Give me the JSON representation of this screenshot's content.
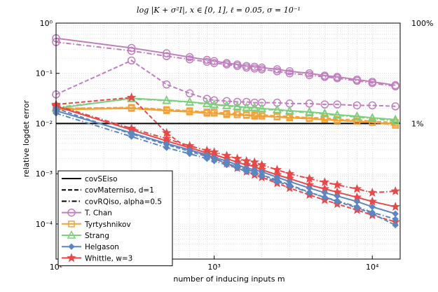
{
  "chart_data": {
    "type": "line",
    "title": "log |K + σ²I|, x ∈ [0, 1], ℓ = 0.05, σ = 10⁻¹",
    "xlabel": "number of inducing inputs m",
    "ylabel": "relative logdet error",
    "xscale": "log",
    "yscale": "log",
    "xlim": [
      100,
      15000
    ],
    "ylim": [
      2e-05,
      1
    ],
    "grid": true,
    "legend_position": "bottom-left",
    "x_ticks": [
      {
        "v": 100,
        "t": "10²"
      },
      {
        "v": 1000,
        "t": "10³"
      },
      {
        "v": 10000,
        "t": "10⁴"
      }
    ],
    "y_ticks": [
      {
        "v": 1,
        "t": "10⁰"
      },
      {
        "v": 0.1,
        "t": "10⁻¹"
      },
      {
        "v": 0.01,
        "t": "10⁻²"
      },
      {
        "v": 0.001,
        "t": "10⁻³"
      },
      {
        "v": 0.0001,
        "t": "10⁻⁴"
      }
    ],
    "right_labels": [
      {
        "v": 1,
        "t": "100%"
      },
      {
        "v": 0.01,
        "t": "1%"
      }
    ],
    "reference_line": 0.01,
    "legend": [
      {
        "label": "covSEiso",
        "style": "solid",
        "color": "#000000"
      },
      {
        "label": "covMaterniso, d=1",
        "style": "dashed",
        "color": "#000000"
      },
      {
        "label": "covRQiso, alpha=0.5",
        "style": "dashdot",
        "color": "#000000"
      },
      {
        "label": "T. Chan",
        "style": "solid",
        "color": "#bf7fbf",
        "marker": "circle"
      },
      {
        "label": "Tyrtyshnikov",
        "style": "solid",
        "color": "#f5a033",
        "marker": "square"
      },
      {
        "label": "Strang",
        "style": "solid",
        "color": "#7fce7f",
        "marker": "triangle"
      },
      {
        "label": "Helgason",
        "style": "solid",
        "color": "#5b86c1",
        "marker": "diamond"
      },
      {
        "label": "Whittle, w=3",
        "style": "solid",
        "color": "#e84848",
        "marker": "star"
      }
    ],
    "x": [
      100,
      300,
      500,
      700,
      900,
      1000,
      1200,
      1400,
      1600,
      1800,
      2000,
      2500,
      3000,
      4000,
      5000,
      6000,
      8000,
      10000,
      14000
    ],
    "series": [
      {
        "name": "T. Chan",
        "kernel": "covSEiso",
        "color": "#bf7fbf",
        "marker": "circle",
        "style": "solid",
        "values": [
          0.5,
          0.32,
          0.25,
          0.21,
          0.185,
          0.175,
          0.16,
          0.15,
          0.14,
          0.135,
          0.13,
          0.12,
          0.11,
          0.1,
          0.09,
          0.085,
          0.075,
          0.068,
          0.058
        ]
      },
      {
        "name": "T. Chan",
        "kernel": "covRQiso",
        "color": "#bf7fbf",
        "marker": "circle",
        "style": "dashdot",
        "values": [
          0.42,
          0.28,
          0.22,
          0.19,
          0.17,
          0.16,
          0.15,
          0.14,
          0.13,
          0.125,
          0.12,
          0.11,
          0.1,
          0.092,
          0.085,
          0.08,
          0.071,
          0.064,
          0.055
        ]
      },
      {
        "name": "T. Chan",
        "kernel": "covMaterniso",
        "color": "#bf7fbf",
        "marker": "circle",
        "style": "dashed",
        "values": [
          0.038,
          0.18,
          0.06,
          0.04,
          0.031,
          0.029,
          0.028,
          0.027,
          0.027,
          0.026,
          0.026,
          0.026,
          0.025,
          0.025,
          0.024,
          0.024,
          0.023,
          0.023,
          0.022
        ]
      },
      {
        "name": "Tyrtyshnikov",
        "kernel": "covMaterniso",
        "color": "#f5a033",
        "marker": "square",
        "style": "dashed",
        "values": [
          0.02,
          0.021,
          0.019,
          0.018,
          0.017,
          0.017,
          0.016,
          0.016,
          0.015,
          0.015,
          0.015,
          0.014,
          0.014,
          0.013,
          0.013,
          0.012,
          0.012,
          0.011,
          0.0105
        ]
      },
      {
        "name": "Tyrtyshnikov",
        "kernel": "covSEiso",
        "color": "#f5a033",
        "marker": "square",
        "style": "solid",
        "values": [
          0.019,
          0.02,
          0.018,
          0.017,
          0.016,
          0.016,
          0.015,
          0.015,
          0.0145,
          0.014,
          0.014,
          0.0135,
          0.013,
          0.0125,
          0.012,
          0.0115,
          0.011,
          0.0105,
          0.0098
        ]
      },
      {
        "name": "Tyrtyshnikov",
        "kernel": "covRQiso",
        "color": "#f5a033",
        "marker": "square",
        "style": "dashdot",
        "values": [
          0.02,
          0.0205,
          0.0185,
          0.0175,
          0.0165,
          0.0162,
          0.0155,
          0.015,
          0.0148,
          0.0145,
          0.0142,
          0.0137,
          0.0133,
          0.0127,
          0.0122,
          0.0118,
          0.0112,
          0.0106,
          0.0092
        ]
      },
      {
        "name": "Strang",
        "kernel": "covSEiso",
        "color": "#7fce7f",
        "marker": "triangle",
        "style": "solid",
        "values": [
          0.02,
          0.032,
          0.029,
          0.027,
          0.025,
          0.024,
          0.023,
          0.022,
          0.021,
          0.021,
          0.02,
          0.019,
          0.018,
          0.017,
          0.016,
          0.015,
          0.014,
          0.013,
          0.012
        ]
      },
      {
        "name": "Strang",
        "kernel": "covRQiso",
        "color": "#7fce7f",
        "marker": "triangle",
        "style": "dashdot",
        "values": [
          0.021,
          0.031,
          0.0285,
          0.0265,
          0.0245,
          0.0235,
          0.0225,
          0.0215,
          0.0205,
          0.0205,
          0.0195,
          0.0185,
          0.0175,
          0.0165,
          0.0155,
          0.0145,
          0.0135,
          0.0126,
          0.0112
        ]
      },
      {
        "name": "Whittle, w=3",
        "kernel": "covSEiso",
        "color": "#e84848",
        "marker": "star",
        "style": "solid",
        "values": [
          0.022,
          0.0075,
          0.0045,
          0.0033,
          0.0026,
          0.0024,
          0.002,
          0.0017,
          0.0015,
          0.0014,
          0.0012,
          0.00095,
          0.0008,
          0.0006,
          0.0005,
          0.00043,
          0.00034,
          0.00028,
          0.00022
        ]
      },
      {
        "name": "Whittle, w=3",
        "kernel": "covRQiso",
        "color": "#e84848",
        "marker": "star",
        "style": "dashdot",
        "values": [
          0.023,
          0.008,
          0.005,
          0.0036,
          0.0029,
          0.0027,
          0.0023,
          0.002,
          0.0018,
          0.0017,
          0.0015,
          0.0012,
          0.001,
          0.0008,
          0.00068,
          0.0006,
          0.0005,
          0.00042,
          0.00045
        ]
      },
      {
        "name": "Whittle, w=3",
        "kernel": "covMaterniso",
        "color": "#e84848",
        "marker": "star",
        "style": "dashed",
        "values": [
          0.024,
          0.033,
          0.0065,
          0.003,
          0.0023,
          0.002,
          0.0016,
          0.0013,
          0.0011,
          0.00095,
          0.00085,
          0.00065,
          0.00052,
          0.00038,
          0.0003,
          0.00025,
          0.00019,
          0.00015,
          0.00011
        ]
      },
      {
        "name": "Helgason",
        "kernel": "covSEiso",
        "color": "#5b86c1",
        "marker": "diamond",
        "style": "solid",
        "values": [
          0.018,
          0.0065,
          0.004,
          0.003,
          0.0024,
          0.0021,
          0.0018,
          0.0015,
          0.0013,
          0.0012,
          0.0011,
          0.00085,
          0.0007,
          0.00052,
          0.00042,
          0.00036,
          0.00028,
          0.00022,
          0.00016
        ]
      },
      {
        "name": "Helgason",
        "kernel": "covRQiso",
        "color": "#5b86c1",
        "marker": "diamond",
        "style": "dashdot",
        "values": [
          0.016,
          0.0055,
          0.0033,
          0.0025,
          0.002,
          0.0018,
          0.0015,
          0.0013,
          0.0011,
          0.001,
          0.0009,
          0.0007,
          0.00058,
          0.00042,
          0.00034,
          0.00029,
          0.00022,
          0.00017,
          0.000125
        ]
      },
      {
        "name": "Helgason",
        "kernel": "covMaterniso",
        "color": "#5b86c1",
        "marker": "diamond",
        "style": "dashed",
        "values": [
          0.02,
          0.0062,
          0.0038,
          0.0028,
          0.0022,
          0.002,
          0.0016,
          0.0014,
          0.0012,
          0.0011,
          0.00095,
          0.00075,
          0.0006,
          0.00043,
          0.00034,
          0.00028,
          0.00021,
          0.00016,
          9.5e-05
        ]
      }
    ]
  }
}
